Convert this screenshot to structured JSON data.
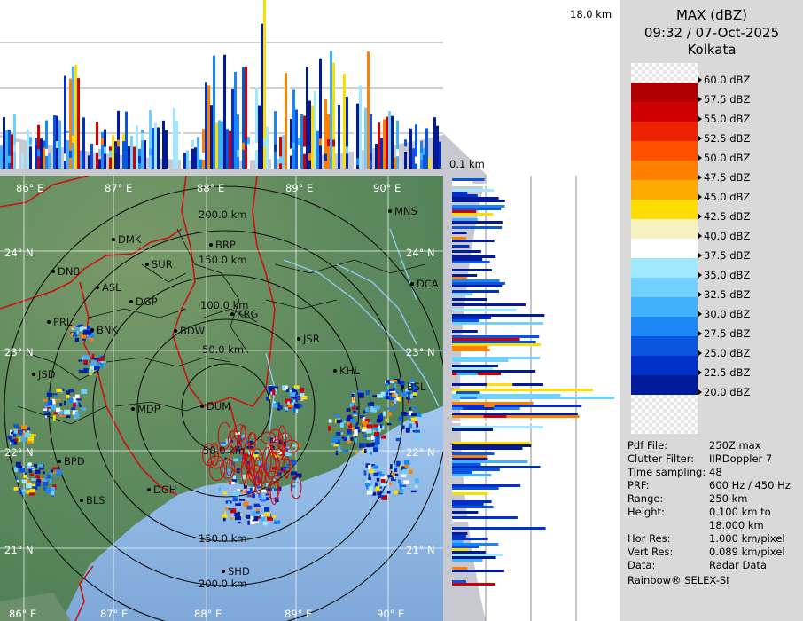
{
  "product": {
    "title": "MAX (dBZ)",
    "datetime": "09:32 / 07-Oct-2025",
    "station": "Kolkata"
  },
  "height_axis": {
    "top_label": "18.0 km",
    "bottom_label": "0.1 km"
  },
  "color_scale": [
    {
      "label": "60.0 dBZ",
      "color": "checker"
    },
    {
      "label": "57.5 dBZ",
      "color": "#b00000"
    },
    {
      "label": "55.0 dBZ",
      "color": "#d00000"
    },
    {
      "label": "52.5 dBZ",
      "color": "#ee2200"
    },
    {
      "label": "50.0 dBZ",
      "color": "#ff5000"
    },
    {
      "label": "47.5 dBZ",
      "color": "#ff8000"
    },
    {
      "label": "45.0 dBZ",
      "color": "#ffaa00"
    },
    {
      "label": "42.5 dBZ",
      "color": "#ffdd00"
    },
    {
      "label": "40.0 dBZ",
      "color": "#f5f2c0"
    },
    {
      "label": "37.5 dBZ",
      "color": "#ffffff"
    },
    {
      "label": "35.0 dBZ",
      "color": "#a0e8ff"
    },
    {
      "label": "32.5 dBZ",
      "color": "#70d0ff"
    },
    {
      "label": "30.0 dBZ",
      "color": "#40b0ff"
    },
    {
      "label": "27.5 dBZ",
      "color": "#1a85f5"
    },
    {
      "label": "25.0 dBZ",
      "color": "#0a55e0"
    },
    {
      "label": "22.5 dBZ",
      "color": "#0030c8"
    },
    {
      "label": "20.0 dBZ",
      "color": "#001a99"
    }
  ],
  "info": [
    {
      "key": "Pdf File:",
      "value": "250Z.max"
    },
    {
      "key": "Clutter Filter:",
      "value": "IIRDoppler 7"
    },
    {
      "key": "Time sampling:",
      "value": "48"
    },
    {
      "key": "PRF:",
      "value": "600 Hz / 450 Hz"
    },
    {
      "key": "Range:",
      "value": "250 km"
    },
    {
      "key": "Height:",
      "value": "0.100 km to"
    },
    {
      "key": "",
      "value": "18.000 km"
    },
    {
      "key": "Hor Res:",
      "value": "1.000 km/pixel"
    },
    {
      "key": "Vert Res:",
      "value": "0.089 km/pixel"
    },
    {
      "key": "Data:",
      "value": "Radar Data"
    }
  ],
  "footer": "Rainbow® SELEX-SI",
  "map": {
    "lon_labels": [
      "86° E",
      "87° E",
      "88° E",
      "89° E",
      "90° E"
    ],
    "lat_labels": [
      "24° N",
      "23° N",
      "22° N",
      "21° N"
    ],
    "range_labels": [
      "50.0 km",
      "100.0 km",
      "150.0 km",
      "200.0 km"
    ],
    "cities": [
      "MNS",
      "DMK",
      "BRP",
      "SUR",
      "DNB",
      "ASL",
      "DGP",
      "DCA",
      "KRG",
      "PRL",
      "BNK",
      "BDW",
      "JSR",
      "KHL",
      "JSD",
      "BSL",
      "MDP",
      "DUM",
      "BPD",
      "DGH",
      "BLS",
      "SHD"
    ]
  }
}
